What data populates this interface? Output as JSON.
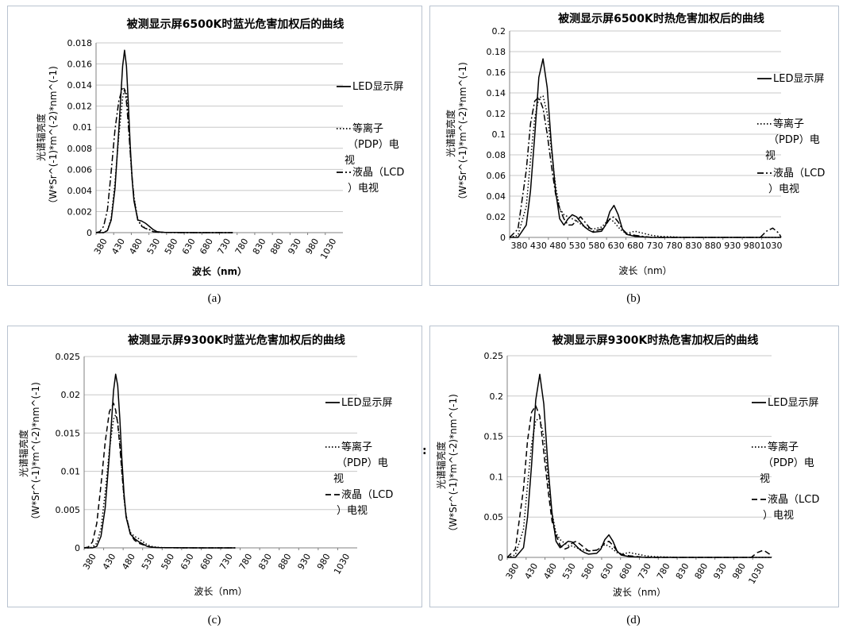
{
  "x_ticks": [
    "380",
    "430",
    "480",
    "530",
    "580",
    "630",
    "680",
    "730",
    "780",
    "830",
    "880",
    "930",
    "980",
    "1030"
  ],
  "legend": [
    "LED显示屏",
    "等离子（PDP）电视",
    "液晶（LCD）电视"
  ],
  "stray_mark": ":",
  "colors": {
    "frame": "#b9c3d0",
    "grid": "#c8c8c8",
    "line": "#000000"
  },
  "chart_data": [
    {
      "id": "a",
      "caption": "(a)",
      "type": "line",
      "title": "被测显示屏6500K时蓝光危害加权后的曲线",
      "xlabel": "波长（nm）",
      "ylabel": [
        "光谱辐亮度",
        "（W*Sr^(-1)*m^(-2)*nm^(-1)"
      ],
      "ylim": [
        0,
        0.018
      ],
      "y_ticks": [
        "0",
        "0.002",
        "0.004",
        "0.006",
        "0.008",
        "0.01",
        "0.012",
        "0.014",
        "0.016",
        "0.018"
      ],
      "x_tick_style": "rotated",
      "x": [
        380,
        390,
        400,
        410,
        420,
        430,
        440,
        450,
        455,
        460,
        465,
        470,
        475,
        480,
        490,
        500,
        510,
        520,
        530,
        540,
        550,
        560,
        580,
        620,
        680,
        740
      ],
      "series": [
        {
          "name": "LED显示屏",
          "style": "solid",
          "values": [
            0,
            0,
            0,
            0.0002,
            0.0012,
            0.0042,
            0.0098,
            0.0158,
            0.0173,
            0.0158,
            0.0122,
            0.0082,
            0.005,
            0.003,
            0.0012,
            0.0011,
            0.0009,
            0.0006,
            0.0003,
            0.0001,
            5e-05,
            3e-05,
            2e-05,
            1e-05,
            0,
            0
          ]
        },
        {
          "name": "等离子（PDP）电视",
          "style": "dotted",
          "values": [
            0,
            0,
            0,
            0.0002,
            0.0014,
            0.0048,
            0.0092,
            0.0128,
            0.0136,
            0.0132,
            0.011,
            0.0076,
            0.005,
            0.0034,
            0.0012,
            0.0007,
            0.0004,
            0.0003,
            0.0001,
            5e-05,
            3e-05,
            2e-05,
            1e-05,
            0,
            0,
            0
          ]
        },
        {
          "name": "液晶（LCD）电视",
          "style": "dashdot",
          "values": [
            0,
            0.0001,
            0.0006,
            0.0022,
            0.0058,
            0.0098,
            0.0125,
            0.0138,
            0.0136,
            0.0124,
            0.0102,
            0.0076,
            0.0052,
            0.0032,
            0.0012,
            0.0006,
            0.0004,
            0.0003,
            0.0001,
            5e-05,
            3e-05,
            2e-05,
            1e-05,
            0,
            0,
            0
          ]
        }
      ]
    },
    {
      "id": "b",
      "caption": "(b)",
      "type": "line",
      "title": "被测显示屏6500K时热危害加权后的曲线",
      "xlabel": "波长（nm）",
      "ylabel": [
        "光谱辐亮度",
        "（W*Sr^(-1)*m^(-2)*nm^(-1)"
      ],
      "ylim": [
        0,
        0.2
      ],
      "y_ticks": [
        "0",
        "0.02",
        "0.04",
        "0.06",
        "0.08",
        "0.1",
        "0.12",
        "0.14",
        "0.16",
        "0.18",
        "0.2"
      ],
      "x_tick_style": "flat",
      "x": [
        380,
        400,
        420,
        430,
        440,
        450,
        460,
        470,
        480,
        490,
        500,
        510,
        520,
        530,
        540,
        550,
        560,
        570,
        580,
        600,
        610,
        620,
        630,
        640,
        650,
        660,
        680,
        700,
        720,
        740,
        800,
        900,
        980,
        995,
        1010,
        1025,
        1030
      ],
      "series": [
        {
          "name": "LED显示屏",
          "style": "solid",
          "values": [
            0,
            0,
            0.012,
            0.045,
            0.098,
            0.155,
            0.173,
            0.145,
            0.09,
            0.045,
            0.018,
            0.012,
            0.018,
            0.022,
            0.02,
            0.015,
            0.01,
            0.007,
            0.005,
            0.006,
            0.012,
            0.025,
            0.031,
            0.022,
            0.008,
            0.003,
            0.001,
            0.0005,
            0,
            0,
            0,
            0,
            0,
            0,
            0,
            0,
            0
          ]
        },
        {
          "name": "等离子（PDP）电视",
          "style": "dotted",
          "values": [
            0,
            0.002,
            0.03,
            0.075,
            0.115,
            0.135,
            0.137,
            0.12,
            0.085,
            0.05,
            0.028,
            0.022,
            0.02,
            0.018,
            0.016,
            0.013,
            0.01,
            0.009,
            0.008,
            0.01,
            0.014,
            0.018,
            0.015,
            0.01,
            0.006,
            0.004,
            0.006,
            0.004,
            0.002,
            0.001,
            0,
            0,
            0,
            0,
            0,
            0,
            0
          ]
        },
        {
          "name": "液晶（LCD）电视",
          "style": "dashdot",
          "values": [
            0,
            0.008,
            0.065,
            0.11,
            0.132,
            0.136,
            0.125,
            0.1,
            0.07,
            0.042,
            0.028,
            0.018,
            0.012,
            0.012,
            0.016,
            0.02,
            0.015,
            0.01,
            0.006,
            0.008,
            0.012,
            0.018,
            0.02,
            0.015,
            0.008,
            0.004,
            0.002,
            0.001,
            0,
            0,
            0,
            0,
            0,
            0.006,
            0.009,
            0.004,
            0
          ]
        }
      ]
    },
    {
      "id": "c",
      "caption": "(c)",
      "type": "line",
      "title": "被测显示屏9300K时蓝光危害加权后的曲线",
      "xlabel": "波长（nm）",
      "ylabel": [
        "光谱辐亮度",
        "（W*Sr^(-1)*m^(-2)*nm^(-1)"
      ],
      "ylim": [
        0,
        0.025
      ],
      "y_ticks": [
        "0",
        "0.005",
        "0.01",
        "0.015",
        "0.02",
        "0.025"
      ],
      "x_tick_style": "rotated",
      "x": [
        380,
        390,
        400,
        410,
        420,
        430,
        440,
        450,
        455,
        460,
        465,
        470,
        475,
        480,
        490,
        500,
        510,
        520,
        530,
        540,
        550,
        560,
        580,
        620,
        680,
        740
      ],
      "series": [
        {
          "name": "LED显示屏",
          "style": "solid",
          "values": [
            0,
            0,
            0,
            0.0002,
            0.0015,
            0.0052,
            0.0122,
            0.0205,
            0.0227,
            0.0212,
            0.0168,
            0.0115,
            0.007,
            0.004,
            0.0018,
            0.0012,
            0.0008,
            0.0005,
            0.0002,
            0.0001,
            5e-05,
            3e-05,
            2e-05,
            1e-05,
            0,
            0
          ]
        },
        {
          "name": "等离子（PDP）电视",
          "style": "dotted",
          "values": [
            0,
            0,
            0.0001,
            0.0006,
            0.0025,
            0.0072,
            0.0128,
            0.0168,
            0.0174,
            0.0165,
            0.0138,
            0.0098,
            0.0064,
            0.0042,
            0.002,
            0.0015,
            0.0012,
            0.0008,
            0.0004,
            0.0002,
            0.0001,
            5e-05,
            2e-05,
            0,
            0,
            0
          ]
        },
        {
          "name": "液晶（LCD）电视",
          "style": "dashed",
          "values": [
            0,
            0.0001,
            0.0008,
            0.0032,
            0.0082,
            0.0138,
            0.0178,
            0.0189,
            0.018,
            0.0162,
            0.0132,
            0.0098,
            0.0066,
            0.0042,
            0.0018,
            0.001,
            0.0006,
            0.0004,
            0.0002,
            0.0001,
            5e-05,
            2e-05,
            1e-05,
            0,
            0,
            0
          ]
        }
      ]
    },
    {
      "id": "d",
      "caption": "(d)",
      "type": "line",
      "title": "被测显示屏9300K时热危害加权后的曲线",
      "xlabel": "波长（nm）",
      "ylabel": [
        "光谱辐亮度",
        "（W*Sr^(-1)*m^(-2)*nm^(-1)"
      ],
      "ylim": [
        0,
        0.25
      ],
      "y_ticks": [
        "0",
        "0.05",
        "0.1",
        "0.15",
        "0.2",
        "0.25"
      ],
      "x_tick_style": "rotated",
      "x": [
        380,
        400,
        420,
        430,
        440,
        450,
        460,
        470,
        480,
        490,
        500,
        510,
        520,
        530,
        540,
        550,
        560,
        570,
        580,
        600,
        610,
        620,
        630,
        640,
        650,
        660,
        680,
        700,
        720,
        740,
        800,
        900,
        980,
        995,
        1010,
        1025,
        1030
      ],
      "series": [
        {
          "name": "LED显示屏",
          "style": "solid",
          "values": [
            0,
            0,
            0.012,
            0.05,
            0.115,
            0.195,
            0.227,
            0.19,
            0.115,
            0.055,
            0.02,
            0.012,
            0.016,
            0.02,
            0.019,
            0.014,
            0.009,
            0.006,
            0.004,
            0.005,
            0.01,
            0.022,
            0.028,
            0.02,
            0.008,
            0.003,
            0.001,
            0.0005,
            0,
            0,
            0,
            0,
            0,
            0,
            0,
            0,
            0
          ]
        },
        {
          "name": "等离子（PDP）电视",
          "style": "dotted",
          "values": [
            0,
            0.003,
            0.035,
            0.09,
            0.14,
            0.17,
            0.172,
            0.15,
            0.1,
            0.055,
            0.03,
            0.022,
            0.018,
            0.015,
            0.014,
            0.012,
            0.01,
            0.009,
            0.008,
            0.009,
            0.012,
            0.016,
            0.014,
            0.01,
            0.006,
            0.004,
            0.006,
            0.004,
            0.002,
            0.001,
            0,
            0,
            0,
            0,
            0,
            0,
            0
          ]
        },
        {
          "name": "液晶（LCD）电视",
          "style": "dashed",
          "values": [
            0,
            0.01,
            0.085,
            0.145,
            0.18,
            0.188,
            0.175,
            0.13,
            0.085,
            0.045,
            0.028,
            0.015,
            0.01,
            0.012,
            0.018,
            0.02,
            0.016,
            0.012,
            0.008,
            0.009,
            0.012,
            0.018,
            0.02,
            0.015,
            0.008,
            0.004,
            0.002,
            0.001,
            0,
            0,
            0,
            0,
            0,
            0.006,
            0.009,
            0.004,
            0
          ]
        }
      ]
    }
  ]
}
